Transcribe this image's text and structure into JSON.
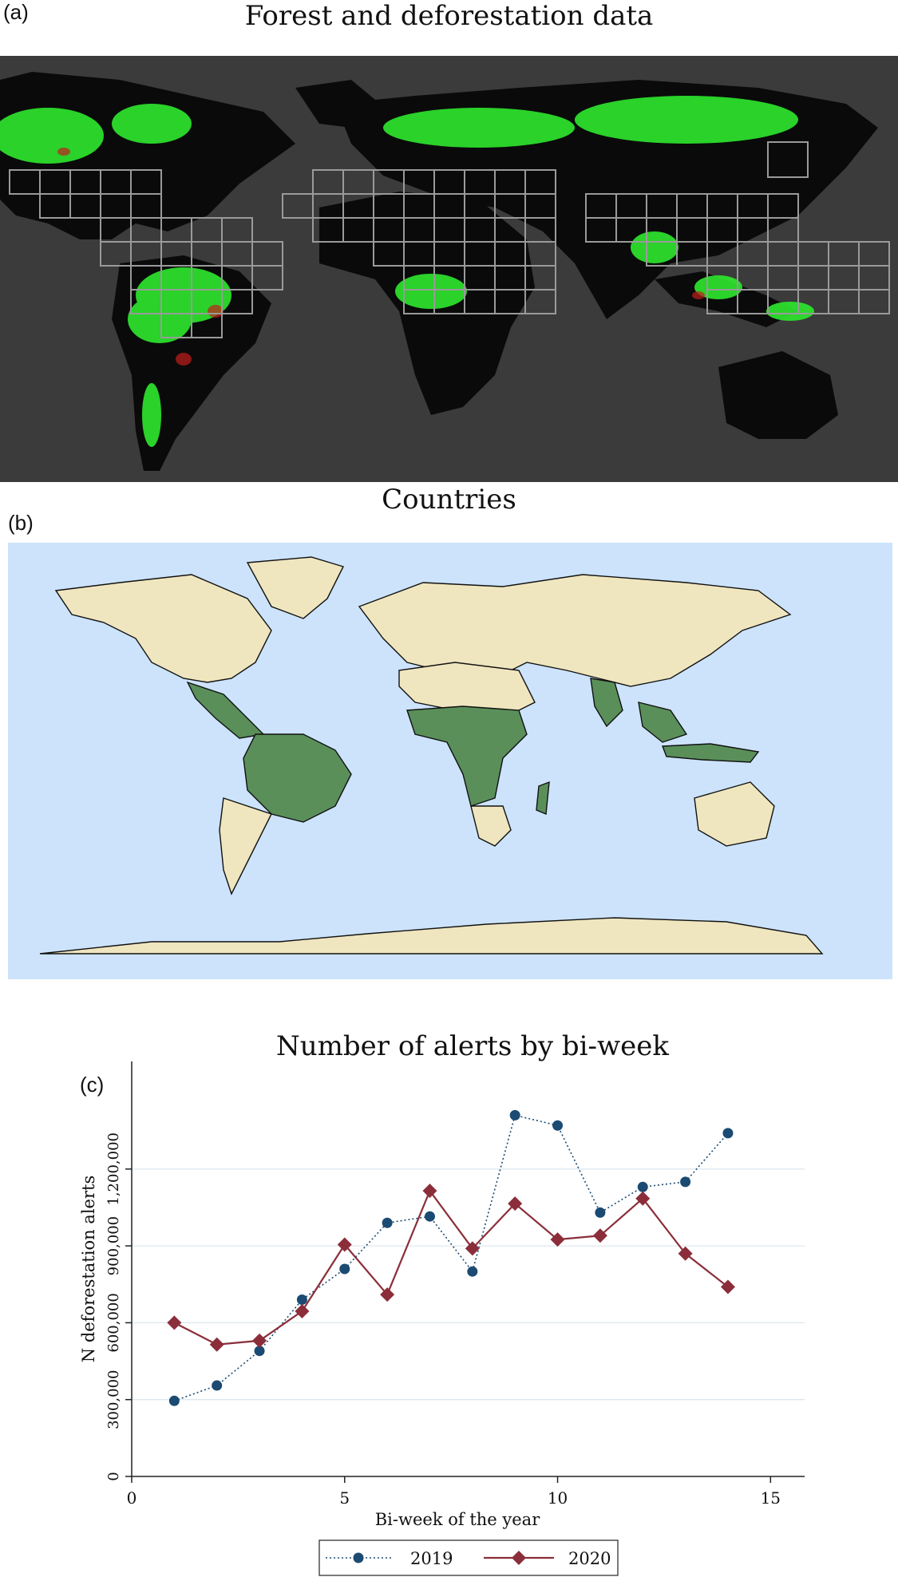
{
  "panel_a": {
    "label": "(a)",
    "title": "Forest and deforestation data"
  },
  "panel_b": {
    "label": "(b)",
    "title": "Countries"
  },
  "colors": {
    "forest": "#2ee82e",
    "tropical_country": "#5a8f5a",
    "other_country": "#efe6bf",
    "ocean": "#cce3fb",
    "dark_map_bg": "#3b3b3b",
    "series_2019": "#1b4a72",
    "series_2020": "#8b2e3a"
  },
  "chart_data": {
    "type": "line",
    "label": "(c)",
    "title": "Number of alerts by bi-week",
    "xlabel": "Bi-week of the year",
    "ylabel": "N deforestation alerts",
    "xlim": [
      0,
      15.8
    ],
    "ylim": [
      0,
      1620000
    ],
    "xticks": [
      0,
      5,
      10,
      15
    ],
    "yticks": [
      0,
      300000,
      600000,
      900000,
      1200000
    ],
    "ytick_labels": [
      "0",
      "300,000",
      "600,000",
      "900,000",
      "1,200,000"
    ],
    "grid": true,
    "legend_position": "bottom",
    "x": [
      1,
      2,
      3,
      4,
      5,
      6,
      7,
      8,
      9,
      10,
      11,
      12,
      13,
      14
    ],
    "series": [
      {
        "name": "2019",
        "style": "dotted",
        "marker": "circle",
        "values": [
          295000,
          355000,
          490000,
          690000,
          810000,
          990000,
          1015000,
          800000,
          1410000,
          1370000,
          1030000,
          1130000,
          1150000,
          1340000
        ]
      },
      {
        "name": "2020",
        "style": "solid",
        "marker": "diamond",
        "values": [
          600000,
          515000,
          530000,
          645000,
          905000,
          710000,
          1115000,
          890000,
          1065000,
          925000,
          940000,
          1085000,
          870000,
          740000
        ]
      }
    ]
  }
}
